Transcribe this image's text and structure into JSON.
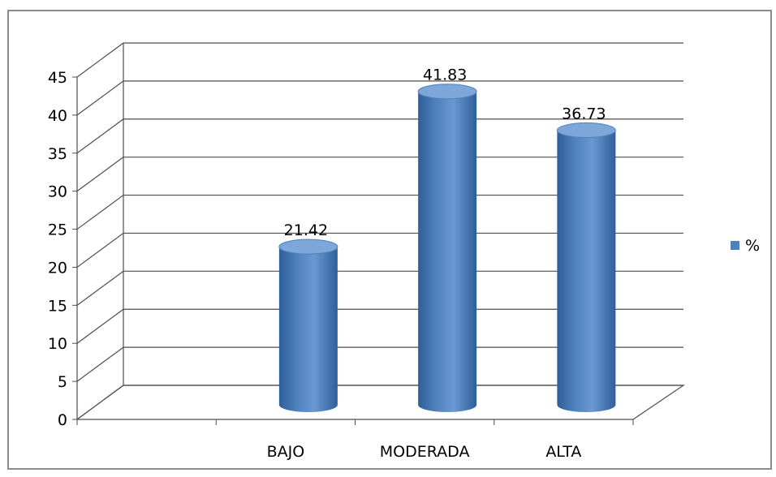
{
  "chart_data": {
    "type": "bar",
    "style": "3d-cylinder",
    "categories": [
      "BAJO",
      "MODERADA",
      "ALTA"
    ],
    "series": [
      {
        "name": "%",
        "values": [
          21.42,
          41.83,
          36.73
        ]
      }
    ],
    "data_labels": [
      "21.42",
      "41.83",
      "36.73"
    ],
    "y_ticks": [
      "0",
      "5",
      "10",
      "15",
      "20",
      "25",
      "30",
      "35",
      "40",
      "45"
    ],
    "ylim": [
      0,
      45
    ],
    "grid": true,
    "legend_position": "right",
    "colors": {
      "bar": "#4f81bd",
      "bar_dark": "#2f5f9a",
      "bar_light": "#7ea6d8",
      "grid": "#4d4d4d",
      "frame": "#8c8c8c",
      "text": "#000000"
    }
  }
}
